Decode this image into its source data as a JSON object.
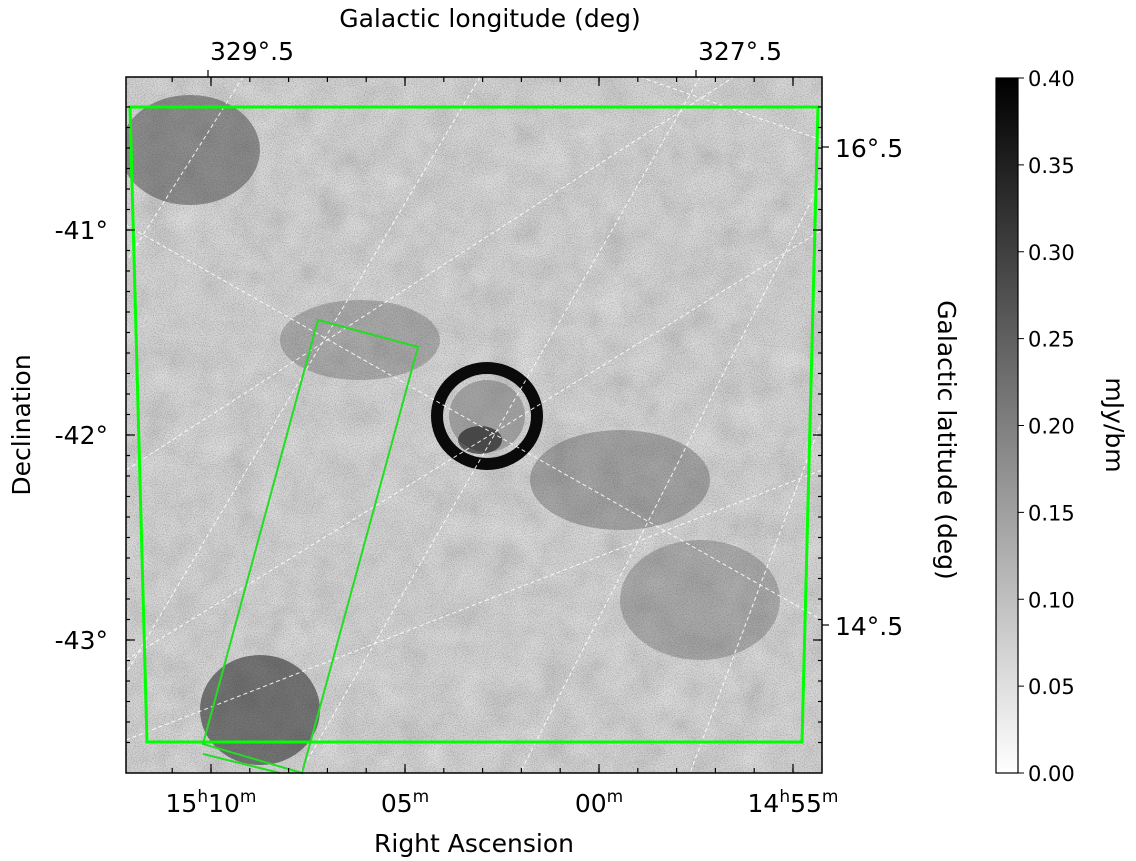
{
  "chart_data": {
    "type": "heatmap",
    "projection": "equatorial RA/Dec with galactic overlay",
    "xlabel": "Right Ascension",
    "ylabel": "Declination",
    "top_xlabel": "Galactic longitude (deg)",
    "right_ylabel": "Galactic latitude (deg)",
    "ra_ticks": [
      {
        "label_h": "15",
        "label_hu": "h",
        "label_m": "10",
        "label_mu": "m",
        "ra_min": 10
      },
      {
        "label_m": "05",
        "label_mu": "m",
        "ra_min": 5
      },
      {
        "label_m": "00",
        "label_mu": "m",
        "ra_min": 0
      },
      {
        "label_h": "14",
        "label_hu": "h",
        "label_m": "55",
        "label_mu": "m",
        "ra_min": -5
      }
    ],
    "dec_ticks": [
      {
        "label": "-41°",
        "value": -41
      },
      {
        "label": "-42°",
        "value": -42
      },
      {
        "label": "-43°",
        "value": -43
      }
    ],
    "glon_ticks": [
      {
        "label": "329°.5",
        "value": 329.5
      },
      {
        "label": "327°.5",
        "value": 327.5
      }
    ],
    "glat_ticks": [
      {
        "label": "16°.5",
        "value": 16.5
      },
      {
        "label": "14°.5",
        "value": 14.5
      }
    ],
    "colorbar": {
      "label": "mJy/bm",
      "colormap": "gray_r",
      "range": [
        0.0,
        0.4
      ],
      "ticks": [
        "0.00",
        "0.05",
        "0.10",
        "0.15",
        "0.20",
        "0.25",
        "0.30",
        "0.35",
        "0.40"
      ]
    },
    "overlays": [
      {
        "name": "survey footprint",
        "color": "#00ff00",
        "shape": "quadrilateral"
      },
      {
        "name": "strip footprint",
        "color": "#00dd00",
        "shape": "rotated rectangle"
      }
    ],
    "features": [
      {
        "name": "shell-like source",
        "description": "dark ring near image centre"
      }
    ],
    "grid": true,
    "grid_style": "white dashed galactic coordinate grid"
  }
}
